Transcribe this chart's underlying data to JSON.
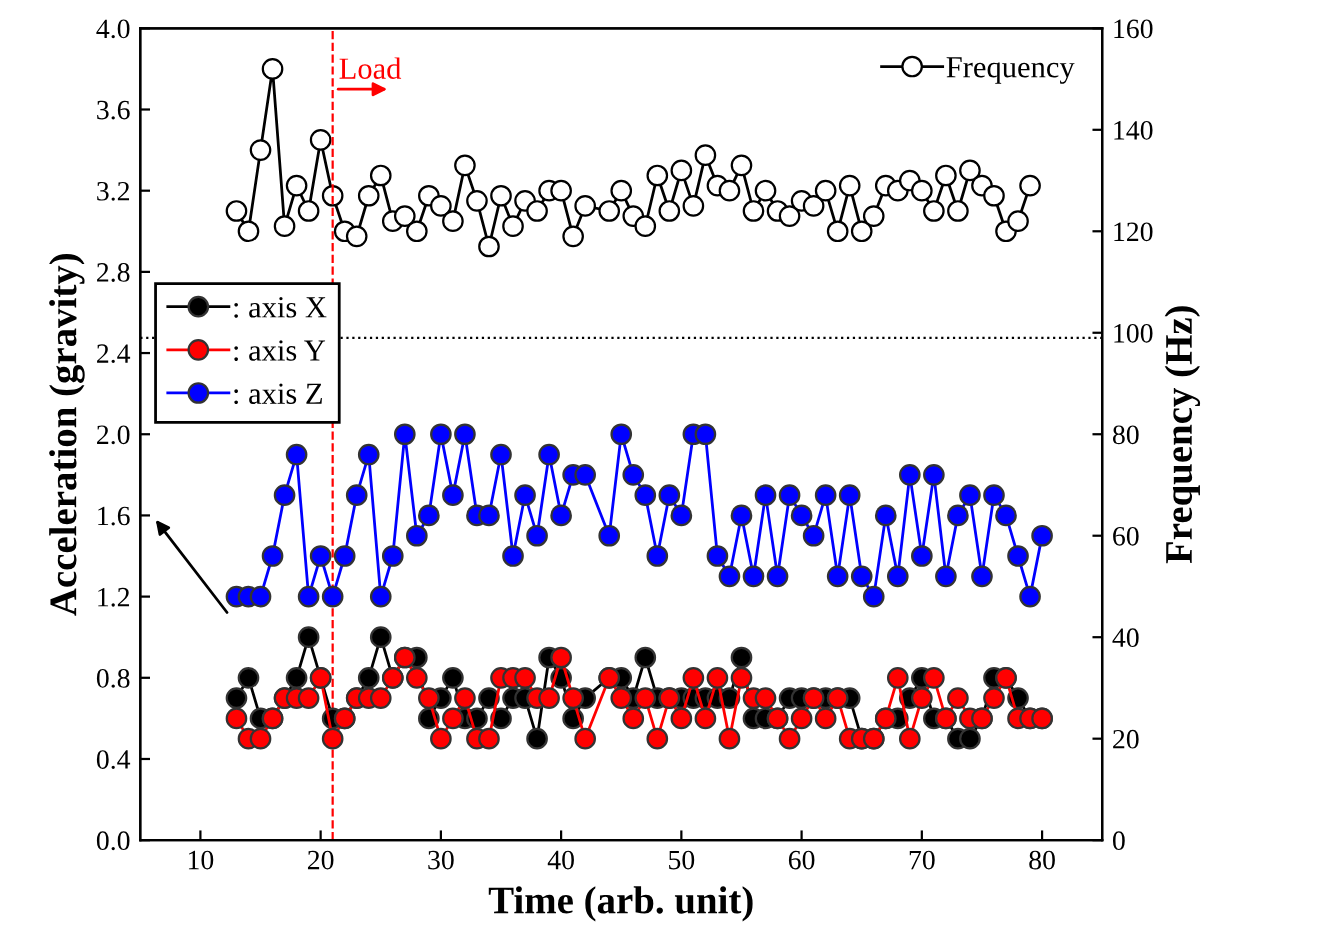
{
  "chart_data": {
    "type": "line",
    "xlabel": "Time (arb. unit)",
    "ylabel": "Acceleration (gravity)",
    "y2label": "Frequency (Hz)",
    "xlim": [
      5,
      85
    ],
    "xticks": [
      10,
      20,
      30,
      40,
      50,
      60,
      70,
      80
    ],
    "ylim": [
      0,
      4
    ],
    "yticks": [
      {
        "value": 0,
        "label": "0.0"
      },
      0.4,
      0.8,
      1.2,
      1.6,
      {
        "value": 2,
        "label": "2.0"
      },
      2.4,
      2.8,
      3.2,
      3.6,
      {
        "value": 4,
        "label": "4.0"
      }
    ],
    "y2lim": [
      0,
      160
    ],
    "y2ticks": [
      0,
      20,
      40,
      60,
      80,
      100,
      120,
      140,
      160
    ],
    "legend": "left",
    "marker": "circle",
    "grid": false,
    "series": [
      {
        "name": ": axis X",
        "color": "#000000",
        "x": [
          13,
          14,
          15,
          16,
          17,
          18,
          19,
          20,
          21,
          22,
          23,
          24,
          25,
          26,
          27,
          28,
          29,
          30,
          31,
          32,
          33,
          34,
          35,
          36,
          37,
          38,
          39,
          40,
          41,
          42,
          44,
          45,
          46,
          47,
          48,
          49,
          50,
          51,
          52,
          53,
          54,
          55,
          56,
          57,
          58,
          59,
          60,
          61,
          62,
          63,
          64,
          65,
          66,
          67,
          68,
          69,
          70,
          71,
          72,
          73,
          74,
          75,
          76,
          77,
          78,
          79,
          80
        ],
        "values": [
          0.7,
          0.8,
          0.6,
          0.6,
          0.7,
          0.8,
          1.0,
          0.8,
          0.6,
          0.6,
          0.7,
          0.8,
          1.0,
          0.8,
          0.9,
          0.9,
          0.6,
          0.7,
          0.8,
          0.6,
          0.6,
          0.7,
          0.6,
          0.7,
          0.7,
          0.5,
          0.9,
          0.8,
          0.6,
          0.7,
          0.8,
          0.8,
          0.7,
          0.9,
          0.7,
          0.7,
          0.7,
          0.7,
          0.7,
          0.7,
          0.7,
          0.9,
          0.6,
          0.6,
          0.6,
          0.7,
          0.7,
          0.7,
          0.7,
          0.7,
          0.7,
          0.5,
          0.5,
          0.6,
          0.6,
          0.7,
          0.8,
          0.6,
          0.6,
          0.5,
          0.5,
          0.6,
          0.8,
          0.8,
          0.7,
          0.6,
          0.6
        ]
      },
      {
        "name": ": axis Y",
        "color": "#ff0000",
        "x": [
          13,
          14,
          15,
          16,
          17,
          18,
          19,
          20,
          21,
          22,
          23,
          24,
          25,
          26,
          27,
          28,
          29,
          30,
          31,
          32,
          33,
          34,
          35,
          36,
          37,
          38,
          39,
          40,
          41,
          42,
          44,
          45,
          46,
          47,
          48,
          49,
          50,
          51,
          52,
          53,
          54,
          55,
          56,
          57,
          58,
          59,
          60,
          61,
          62,
          63,
          64,
          65,
          66,
          67,
          68,
          69,
          70,
          71,
          72,
          73,
          74,
          75,
          76,
          77,
          78,
          79,
          80
        ],
        "values": [
          0.6,
          0.5,
          0.5,
          0.6,
          0.7,
          0.7,
          0.7,
          0.8,
          0.5,
          0.6,
          0.7,
          0.7,
          0.7,
          0.8,
          0.9,
          0.8,
          0.7,
          0.5,
          0.6,
          0.7,
          0.5,
          0.5,
          0.8,
          0.8,
          0.8,
          0.7,
          0.7,
          0.9,
          0.7,
          0.5,
          0.8,
          0.7,
          0.6,
          0.7,
          0.5,
          0.7,
          0.6,
          0.8,
          0.6,
          0.8,
          0.5,
          0.8,
          0.7,
          0.7,
          0.6,
          0.5,
          0.6,
          0.7,
          0.6,
          0.7,
          0.5,
          0.5,
          0.5,
          0.6,
          0.8,
          0.5,
          0.7,
          0.8,
          0.6,
          0.7,
          0.6,
          0.6,
          0.7,
          0.8,
          0.6,
          0.6,
          0.6
        ]
      },
      {
        "name": ": axis Z",
        "color": "#0000ff",
        "x": [
          13,
          14,
          15,
          16,
          17,
          18,
          19,
          20,
          21,
          22,
          23,
          24,
          25,
          26,
          27,
          28,
          29,
          30,
          31,
          32,
          33,
          34,
          35,
          36,
          37,
          38,
          39,
          40,
          41,
          42,
          44,
          45,
          46,
          47,
          48,
          49,
          50,
          51,
          52,
          53,
          54,
          55,
          56,
          57,
          58,
          59,
          60,
          61,
          62,
          63,
          64,
          65,
          66,
          67,
          68,
          69,
          70,
          71,
          72,
          73,
          74,
          75,
          76,
          77,
          78,
          79,
          80
        ],
        "values": [
          1.2,
          1.2,
          1.2,
          1.4,
          1.7,
          1.9,
          1.2,
          1.4,
          1.2,
          1.4,
          1.7,
          1.9,
          1.2,
          1.4,
          2.0,
          1.5,
          1.6,
          2.0,
          1.7,
          2.0,
          1.6,
          1.6,
          1.9,
          1.4,
          1.7,
          1.5,
          1.9,
          1.6,
          1.8,
          1.8,
          1.5,
          2.0,
          1.8,
          1.7,
          1.4,
          1.7,
          1.6,
          2.0,
          2.0,
          1.4,
          1.3,
          1.6,
          1.3,
          1.7,
          1.3,
          1.7,
          1.6,
          1.5,
          1.7,
          1.3,
          1.7,
          1.3,
          1.2,
          1.6,
          1.3,
          1.8,
          1.4,
          1.8,
          1.3,
          1.6,
          1.7,
          1.3,
          1.7,
          1.6,
          1.4,
          1.2,
          1.5
        ]
      },
      {
        "name": "Frequency",
        "color": "#000000",
        "axis": "y2",
        "x": [
          13,
          14,
          15,
          16,
          17,
          18,
          19,
          20,
          21,
          22,
          23,
          24,
          25,
          26,
          27,
          28,
          29,
          30,
          31,
          32,
          33,
          34,
          35,
          36,
          37,
          38,
          39,
          40,
          41,
          42,
          44,
          45,
          46,
          47,
          48,
          49,
          50,
          51,
          52,
          53,
          54,
          55,
          56,
          57,
          58,
          59,
          60,
          61,
          62,
          63,
          64,
          65,
          66,
          67,
          68,
          69,
          70,
          71,
          72,
          73,
          74,
          75,
          76,
          77,
          78,
          79
        ],
        "values": [
          124,
          120,
          136,
          152,
          121,
          129,
          124,
          138,
          127,
          120,
          119,
          127,
          131,
          122,
          123,
          120,
          127,
          125,
          122,
          133,
          126,
          117,
          127,
          121,
          126,
          124,
          128,
          128,
          119,
          125,
          124,
          128,
          123,
          121,
          131,
          124,
          132,
          125,
          135,
          129,
          128,
          133,
          124,
          128,
          124,
          123,
          126,
          125,
          128,
          120,
          129,
          120,
          123,
          129,
          128,
          130,
          128,
          124,
          131,
          124,
          132,
          129,
          127,
          120,
          122,
          129
        ]
      }
    ],
    "ref_lines": [
      {
        "axis": "x",
        "value": 21,
        "label": "Load",
        "color": "#ff0000",
        "line_style": "dashed"
      },
      {
        "axis": "y2",
        "value": 99,
        "color": "#000000",
        "line_style": "dotted"
      }
    ]
  }
}
